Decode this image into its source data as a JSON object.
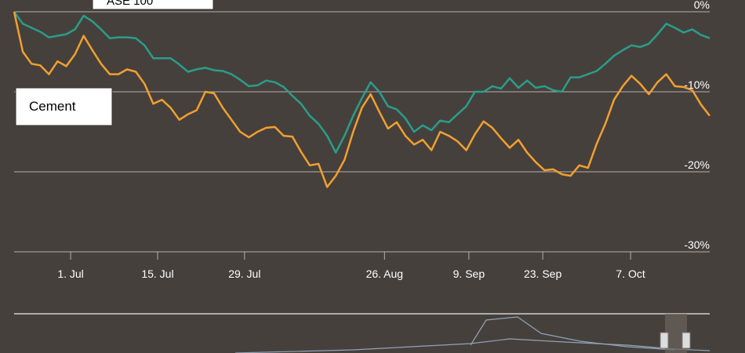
{
  "chart_data": {
    "type": "line",
    "annotations": [
      "ASE 100",
      "Cement"
    ],
    "x": [
      0,
      1,
      2,
      3,
      4,
      5,
      6,
      7,
      8,
      9,
      10,
      11,
      12,
      13,
      14,
      15,
      16,
      17,
      18,
      19,
      20,
      21,
      22,
      23,
      24,
      25,
      26,
      27,
      28,
      29,
      30,
      31,
      32,
      33,
      34,
      35,
      36,
      37,
      38,
      39,
      40,
      41,
      42,
      43,
      44,
      45,
      46,
      47,
      48,
      49,
      50,
      51,
      52,
      53,
      54,
      55,
      56,
      57,
      58,
      59,
      60,
      61,
      62,
      63,
      64,
      65,
      66,
      67,
      68,
      69,
      70,
      71,
      72,
      73,
      74,
      75,
      76,
      77,
      78,
      79,
      80
    ],
    "series": [
      {
        "color": "#2a9d8a",
        "values": [
          0,
          -1.5,
          -2,
          -2.5,
          -3.2,
          -3,
          -2.8,
          -2.2,
          -0.5,
          -1.2,
          -2.2,
          -3.3,
          -3.2,
          -3.2,
          -3.3,
          -4.2,
          -5.8,
          -5.8,
          -5.8,
          -6.6,
          -7.5,
          -7.2,
          -7,
          -7.3,
          -7.4,
          -7.8,
          -8.5,
          -9.3,
          -9.2,
          -8.6,
          -8.8,
          -9.4,
          -10.5,
          -11.5,
          -13,
          -14,
          -15.5,
          -17.6,
          -15.5,
          -13,
          -10.8,
          -8.8,
          -10,
          -11.8,
          -12.2,
          -13.3,
          -15,
          -14.2,
          -14.8,
          -13.6,
          -13.8,
          -12.8,
          -11.8,
          -10,
          -10,
          -9.3,
          -9.6,
          -8.3,
          -9.5,
          -8.6,
          -9.5,
          -9.3,
          -9.8,
          -10,
          -8.2,
          -8.2,
          -7.8,
          -7.4,
          -6.5,
          -5.5,
          -4.8,
          -4.2,
          -4.4,
          -4,
          -2.8,
          -1.5,
          -2,
          -2.6,
          -2.2,
          -2.9,
          -3.3
        ]
      },
      {
        "color": "#f0a030",
        "values": [
          0,
          -5,
          -6.5,
          -6.7,
          -7.8,
          -6.2,
          -6.8,
          -5.3,
          -3,
          -4.8,
          -6.5,
          -7.8,
          -7.8,
          -7.2,
          -7.5,
          -9,
          -11.5,
          -11,
          -12,
          -13.5,
          -12.8,
          -12.3,
          -10,
          -10.2,
          -12,
          -13.5,
          -15,
          -15.7,
          -15,
          -14.5,
          -14.4,
          -15.5,
          -15.6,
          -17.5,
          -19.2,
          -19,
          -21.9,
          -20.5,
          -18.5,
          -15,
          -12,
          -10.3,
          -12.5,
          -14.6,
          -13.8,
          -15.5,
          -16.6,
          -16,
          -17.3,
          -15,
          -15.5,
          -16.2,
          -17.3,
          -15.3,
          -13.7,
          -14.5,
          -15.8,
          -17,
          -16,
          -17.6,
          -18.8,
          -19.8,
          -19.7,
          -20.3,
          -20.5,
          -19.2,
          -19.5,
          -16.5,
          -14,
          -11,
          -9.3,
          -8,
          -9,
          -10.3,
          -8.8,
          -7.8,
          -9.3,
          -9.4,
          -9.8,
          -11.6,
          -13
        ]
      }
    ],
    "xlim": [
      0,
      80
    ],
    "xticks": [
      {
        "value": 6.5,
        "label": "1. Jul"
      },
      {
        "value": 16.5,
        "label": "15. Jul"
      },
      {
        "value": 26.5,
        "label": "29. Jul"
      },
      {
        "value": 42.6,
        "label": "26. Aug"
      },
      {
        "value": 52.3,
        "label": "9. Sep"
      },
      {
        "value": 60.8,
        "label": "23. Sep"
      },
      {
        "value": 70.9,
        "label": "7. Oct"
      }
    ],
    "ylim": [
      -30,
      0
    ],
    "yticks": [
      {
        "value": 0,
        "label": "0%"
      },
      {
        "value": -10,
        "label": "-10%"
      },
      {
        "value": -20,
        "label": "-20%"
      },
      {
        "value": -30,
        "label": "-30%"
      }
    ],
    "grid": true
  }
}
